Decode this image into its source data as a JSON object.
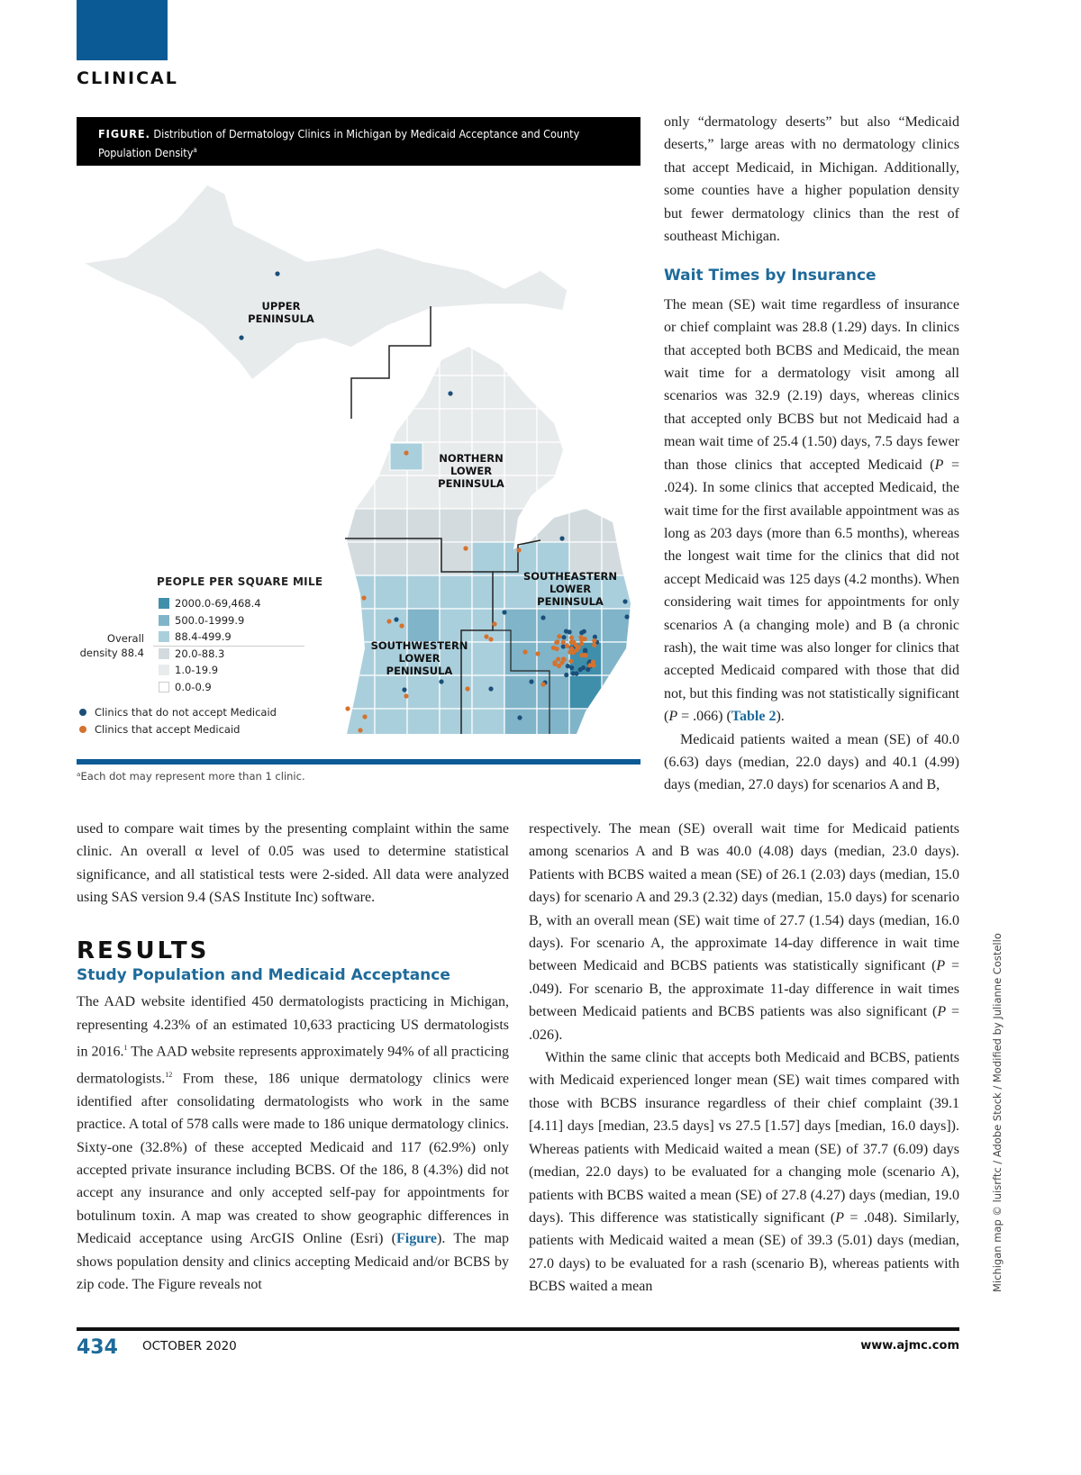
{
  "header": {
    "section": "CLINICAL"
  },
  "figure": {
    "label": "FIGURE.",
    "caption": " Distribution of Dermatology Clinics in Michigan by Medicaid Acceptance and County Population Density",
    "caption_sup": "a",
    "regions": {
      "upper": "UPPER PENINSULA",
      "northern": "NORTHERN LOWER PENINSULA",
      "southeastern": "SOUTHEASTERN LOWER PENINSULA",
      "southwestern": "SOUTHWESTERN LOWER PENINSULA"
    },
    "legend": {
      "title": "PEOPLE PER SQUARE MILE",
      "overall": "Overall density 88.4",
      "bins": [
        {
          "label": "2000.0-69,468.4",
          "color": "#3f8fab"
        },
        {
          "label": "500.0-1999.9",
          "color": "#80b4c9"
        },
        {
          "label": "88.4-499.9",
          "color": "#aacfdc"
        },
        {
          "label": "20.0-88.3",
          "color": "#d3dbde"
        },
        {
          "label": "1.0-19.9",
          "color": "#e8ebec"
        },
        {
          "label": "0.0-0.9",
          "color": "#ffffff"
        }
      ],
      "dots": [
        {
          "label": "Clinics that do not accept Medicaid",
          "color": "#1b4f7a"
        },
        {
          "label": "Clinics that accept Medicaid",
          "color": "#d4722f"
        }
      ]
    },
    "footnote": "ᵃEach dot may represent more than 1 clinic."
  },
  "right_top": {
    "para_cont": "only “dermatology deserts” but also “Medicaid deserts,” large areas with no dermatology clinics that accept Medicaid, in Michigan. Additionally, some counties have a higher population density but fewer dermatology clinics than the rest of southeast Michigan.",
    "heading": "Wait Times by Insurance",
    "para1_a": "The mean (SE) wait time regardless of insurance or chief complaint was 28.8 (1.29) days. In clinics that accepted both BCBS and Medicaid, the mean wait time for a dermatology visit among all scenarios was 32.9 (2.19) days, whereas clinics that accepted only BCBS but not Medicaid had a mean wait time of 25.4 (1.50) days, 7.5 days fewer than those clinics that accepted Medicaid (",
    "p_024": "P",
    "para1_b": " = .024). In some clinics that accepted Medicaid, the wait time for the first available appointment was as long as 203 days (more than 6.5 months), whereas the longest wait time for the clinics that did not accept Medicaid was 125 days (4.2 months). When considering wait times for appointments for only scenarios A (a changing mole) and B (a chronic rash), the wait time was also longer for clinics that accepted Medicaid compared with those that did not, but this finding was not statistically significant (",
    "p_066": "P",
    "para1_c": " = .066) (",
    "table_link": "Table 2",
    "para1_d": ").",
    "para2_start": "Medicaid patients waited a mean (SE) of 40.0 (6.63) days (median, 22.0 days) and 40.1 (4.99) days (median, 27.0 days) for scenarios A and B,"
  },
  "left_bottom": {
    "para_cont": "used to compare wait times by the presenting complaint within the same clinic. An overall α level of 0.05 was used to determine statistical significance, and all statistical tests were 2-sided. All data were analyzed using SAS version 9.4 (SAS Institute Inc) software.",
    "results": "RESULTS",
    "subheading": "Study Population and Medicaid Acceptance",
    "para_a": "The AAD website identified 450 dermatologists practicing in Michigan, representing 4.23% of an estimated 10,633 practicing US dermatologists in 2016.",
    "sup1": "1",
    "para_b": " The AAD website represents approximately 94% of all practicing dermatologists.",
    "sup2": "12",
    "para_c": " From these, 186 unique dermatology clinics were identified after consolidating dermatologists who work in the same practice. A total of 578 calls were made to 186 unique dermatology clinics. Sixty-one (32.8%) of these accepted Medicaid and 117 (62.9%) only accepted private insurance including BCBS. Of the 186, 8 (4.3%) did not accept any insurance and only accepted self-pay for appointments for botulinum toxin. A map was created to show geographic differences in Medicaid acceptance using ArcGIS Online (Esri) (",
    "figure_link": "Figure",
    "para_d": "). The map shows population density and clinics accepting Medicaid and/or BCBS by zip code. The Figure reveals not"
  },
  "right_bottom": {
    "para_cont_a": "respectively. The mean (SE) overall wait time for Medicaid patients among scenarios A and B was 40.0 (4.08) days (median, 23.0 days). Patients with BCBS waited a mean (SE) of 26.1 (2.03) days (median, 15.0 days) for scenario A and 29.3 (2.32) days (median, 15.0 days) for scenario B, with an overall mean (SE) wait time of 27.7 (1.54) days (median, 16.0 days). For scenario A, the approximate 14-day difference in wait time between Medicaid and BCBS patients was statistically significant (",
    "p1": "P",
    "para_cont_b": " = .049). For scenario B, the approximate 11-day difference in wait times between Medicaid patients and BCBS patients was also significant (",
    "p2": "P",
    "para_cont_c": " = .026).",
    "para2_a": "Within the same clinic that accepts both Medicaid and BCBS, patients with Medicaid experienced longer mean (SE) wait times compared with those with BCBS insurance regardless of their chief complaint (39.1 [4.11] days [median, 23.5 days] vs 27.5 [1.57] days [median, 16.0 days]). Whereas patients with Medicaid waited a mean (SE) of 37.7 (6.09) days (median, 22.0 days) to be evaluated for a changing mole (scenario A), patients with BCBS waited a mean (SE) of 27.8 (4.27) days (median, 19.0 days). This difference was statistically significant (",
    "p3": "P",
    "para2_b": " = .048). Similarly, patients with Medicaid waited a mean (SE) of 39.3 (5.01) days (median, 27.0 days) to be evaluated for a rash (scenario B), whereas patients with BCBS waited a mean"
  },
  "credit": "Michigan map © luisrftc / Adobe Stock / Modified by Julianne Costello",
  "footer": {
    "page": "434",
    "date": "OCTOBER 2020",
    "url": "www.ajmc.com"
  }
}
